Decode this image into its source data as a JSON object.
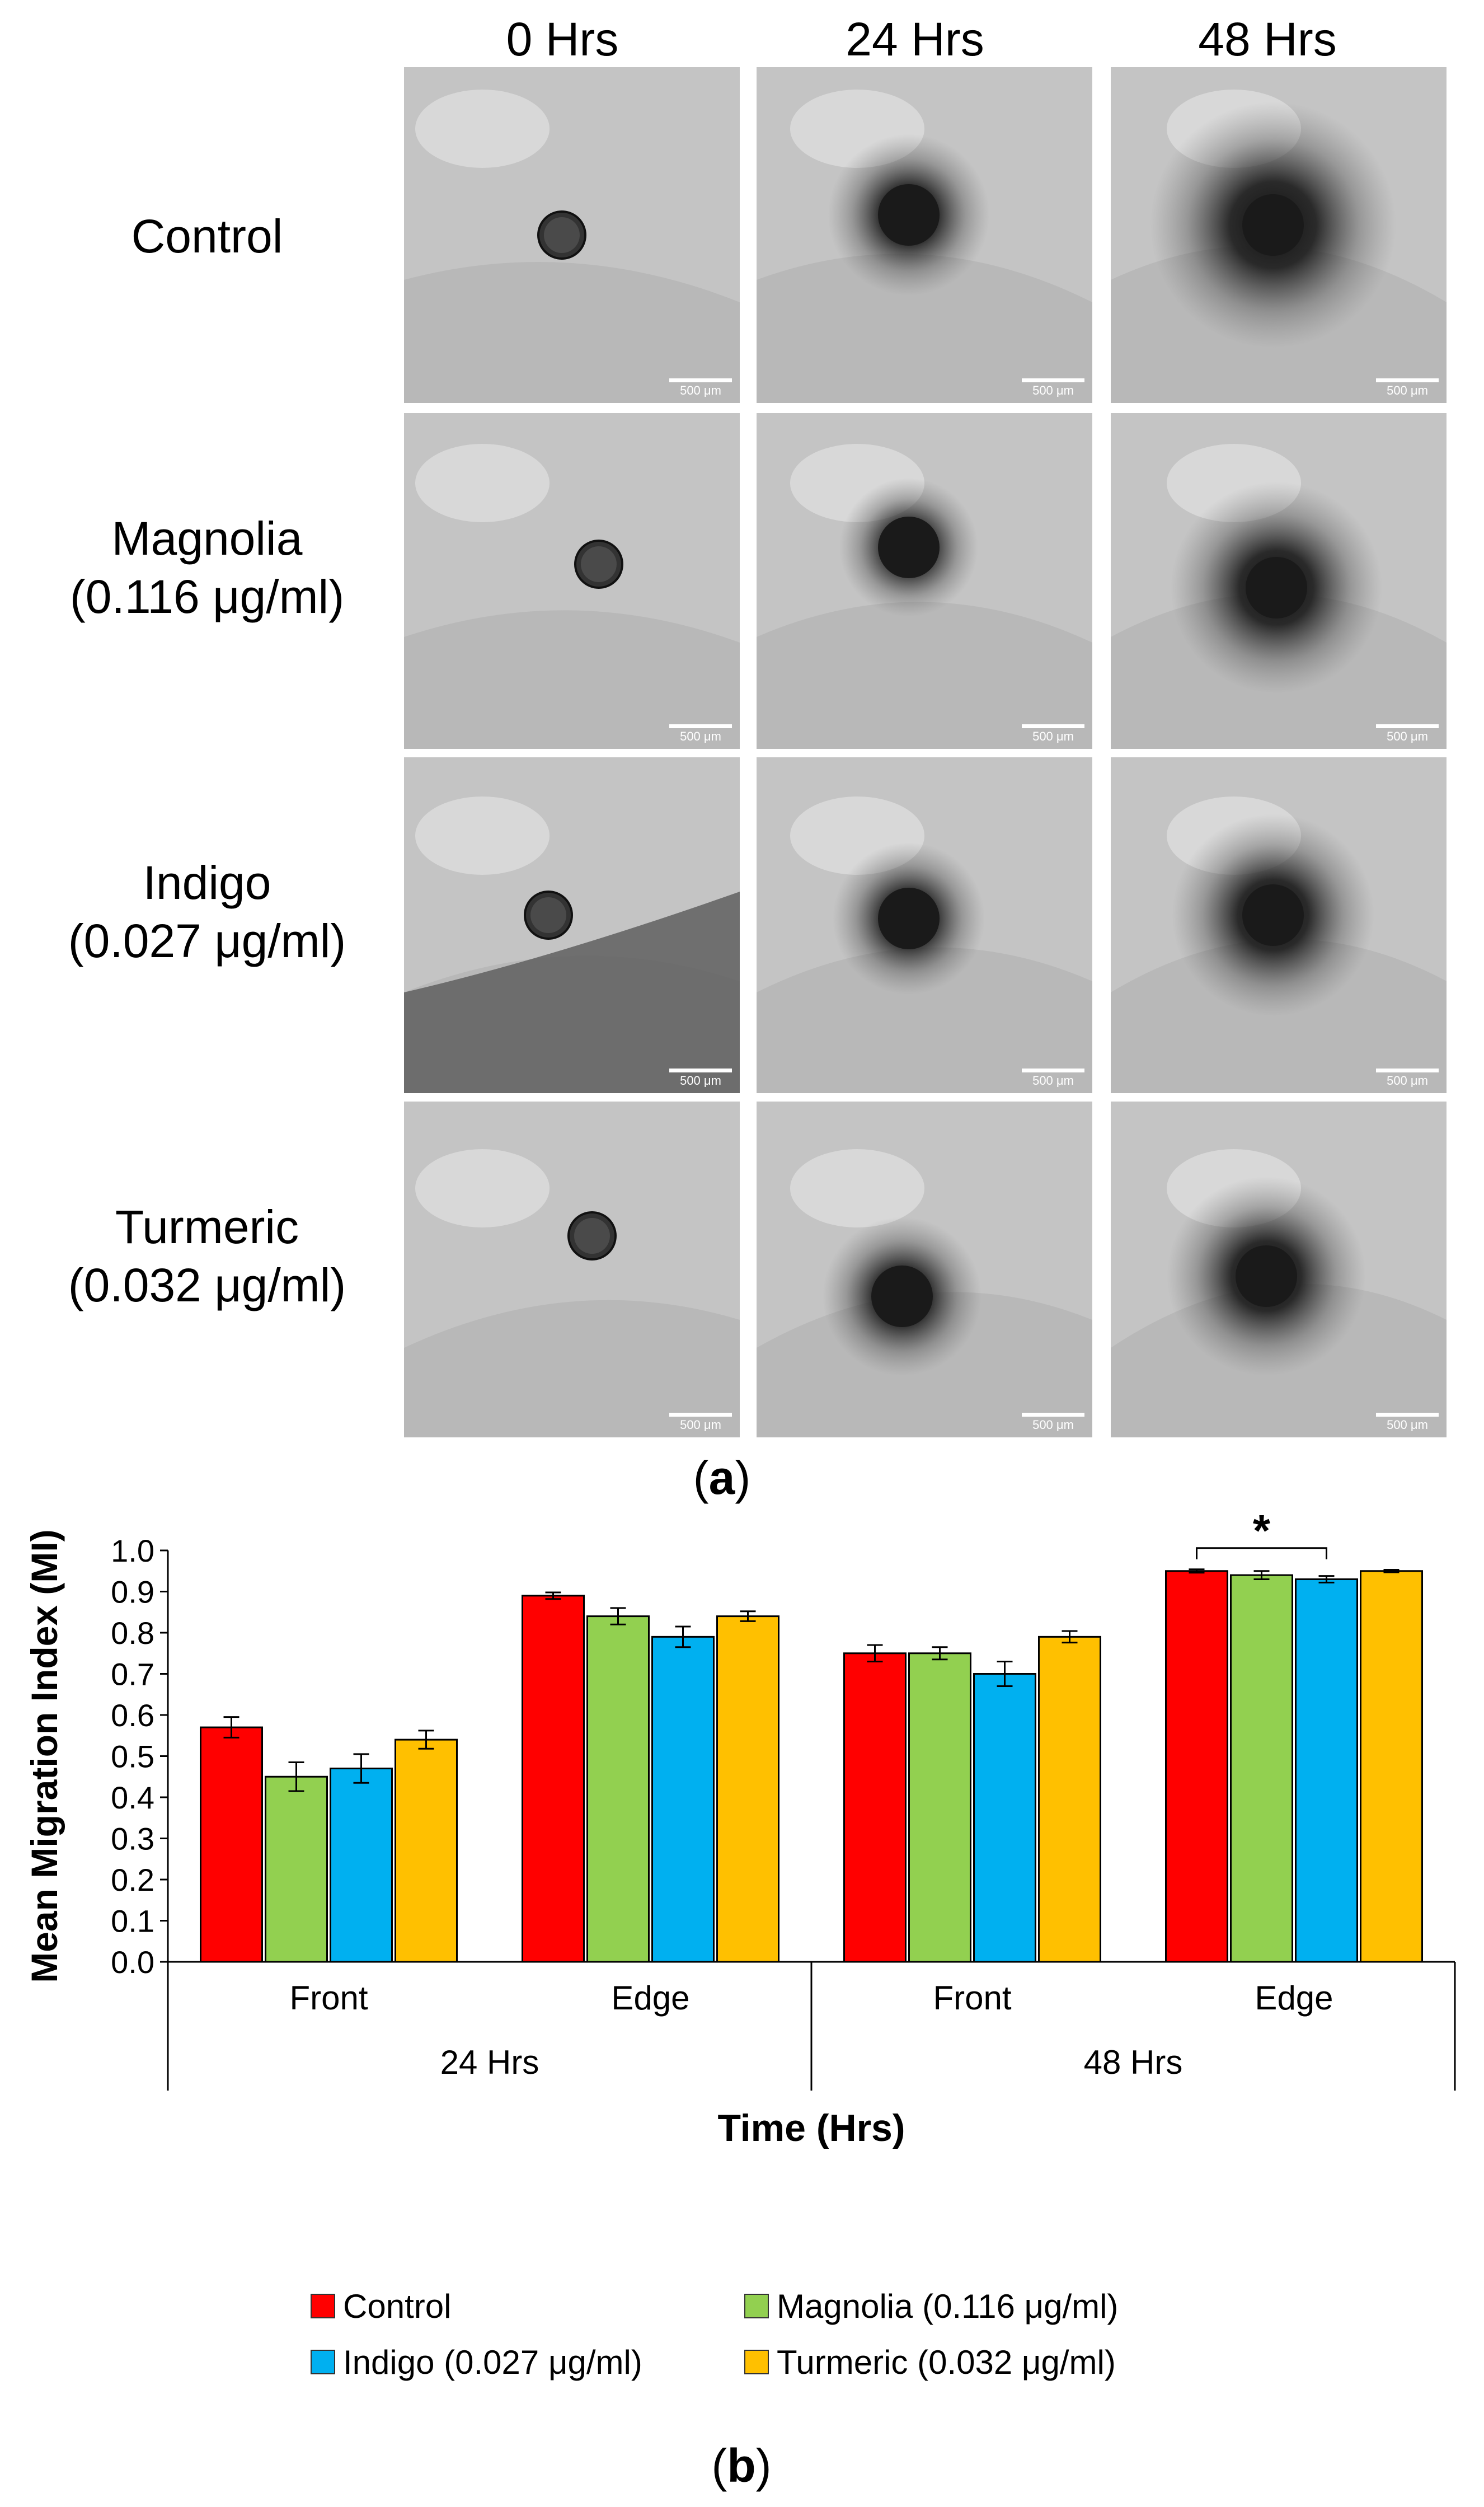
{
  "figure": {
    "columns": [
      "0 Hrs",
      "24 Hrs",
      "48 Hrs"
    ],
    "rows": [
      {
        "lines": [
          "Control"
        ]
      },
      {
        "lines": [
          "Magnolia",
          "(0.116 μg/ml)"
        ]
      },
      {
        "lines": [
          "Indigo",
          "(0.027 μg/ml)"
        ]
      },
      {
        "lines": [
          "Turmeric",
          "(0.032 μg/ml)"
        ]
      }
    ],
    "scale_bar": "500 μm",
    "panel_a": {
      "open": "(",
      "letter": "a",
      "close": ")"
    },
    "panel_b": {
      "open": "(",
      "letter": "b",
      "close": ")"
    }
  },
  "micrograph_spread": [
    [
      0.1,
      0.62,
      1.0
    ],
    [
      0.1,
      0.45,
      0.78
    ],
    [
      0.1,
      0.55,
      0.72
    ],
    [
      0.1,
      0.6,
      0.7
    ]
  ],
  "chart_data": {
    "type": "bar",
    "ylabel": "Mean Migration Index (MI)",
    "xlabel": "Time (Hrs)",
    "ylim": [
      0,
      1.0
    ],
    "yticks": [
      "0.0",
      "0.1",
      "0.2",
      "0.3",
      "0.4",
      "0.5",
      "0.6",
      "0.7",
      "0.8",
      "0.9",
      "1.0"
    ],
    "categories": [
      "Front",
      "Edge",
      "Front",
      "Edge"
    ],
    "groups": [
      {
        "label": "24 Hrs",
        "span": [
          0,
          1
        ]
      },
      {
        "label": "48 Hrs",
        "span": [
          2,
          3
        ]
      }
    ],
    "series": [
      {
        "name": "Control",
        "color": "#ff0000",
        "values": [
          0.57,
          0.89,
          0.75,
          0.95
        ],
        "errors": [
          0.025,
          0.008,
          0.02,
          0.004
        ]
      },
      {
        "name": "Magnolia (0.116 μg/ml)",
        "color": "#92d050",
        "values": [
          0.45,
          0.84,
          0.75,
          0.94
        ],
        "errors": [
          0.035,
          0.02,
          0.015,
          0.01
        ]
      },
      {
        "name": "Indigo (0.027 μg/ml)",
        "color": "#00b0f0",
        "values": [
          0.47,
          0.79,
          0.7,
          0.93
        ],
        "errors": [
          0.035,
          0.025,
          0.03,
          0.008
        ]
      },
      {
        "name": "Turmeric (0.032 μg/ml)",
        "color": "#ffc000",
        "values": [
          0.54,
          0.84,
          0.79,
          0.95
        ],
        "errors": [
          0.022,
          0.012,
          0.014,
          0.003
        ]
      }
    ],
    "significance": {
      "label": "*",
      "category": 3,
      "from_series": 0,
      "to_series": 2
    },
    "legend_position": "bottom",
    "grid": false
  }
}
